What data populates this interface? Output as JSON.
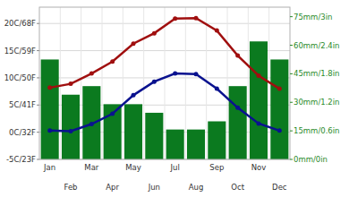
{
  "chart_data": {
    "type": "bar",
    "categories": [
      "Jan",
      "Feb",
      "Mar",
      "Apr",
      "May",
      "Jun",
      "Jul",
      "Aug",
      "Sep",
      "Oct",
      "Nov",
      "Dec"
    ],
    "series": [
      {
        "type": "line",
        "color": "#a00f0f",
        "marker": "circle",
        "values": [
          8.2,
          8.9,
          10.8,
          13.0,
          16.3,
          18.2,
          20.9,
          21.0,
          18.7,
          14.1,
          10.4,
          8.0
        ]
      },
      {
        "type": "line",
        "color": "#0a128f",
        "marker": "circle",
        "values": [
          0.3,
          0.2,
          1.5,
          3.4,
          6.8,
          9.3,
          10.8,
          10.7,
          8.0,
          4.5,
          1.6,
          0.3
        ]
      },
      {
        "type": "bar",
        "color": "#0b7a1f",
        "axis": "y2",
        "values": [
          52.5,
          34,
          38.5,
          29,
          29,
          24.5,
          15.7,
          15.7,
          20,
          38.5,
          62,
          52.5
        ]
      }
    ],
    "ylim": [
      -5,
      23
    ],
    "yticks": [
      {
        "value": -5,
        "label": "-5C/23F"
      },
      {
        "value": 0,
        "label": "0C/32F"
      },
      {
        "value": 5,
        "label": "5C/41F"
      },
      {
        "value": 10,
        "label": "10C/50F"
      },
      {
        "value": 15,
        "label": "15C/59F"
      },
      {
        "value": 20,
        "label": "20C/68F"
      }
    ],
    "y2lim": [
      0,
      80
    ],
    "y2ticks": [
      {
        "value": 0,
        "label": "0mm/0in"
      },
      {
        "value": 15,
        "label": "15mm/0.6in"
      },
      {
        "value": 30,
        "label": "30mm/1.2in"
      },
      {
        "value": 45,
        "label": "45mm/1.8in"
      },
      {
        "value": 60,
        "label": "60mm/2.4in"
      },
      {
        "value": 75,
        "label": "75mm/3in"
      }
    ],
    "grid": true
  }
}
